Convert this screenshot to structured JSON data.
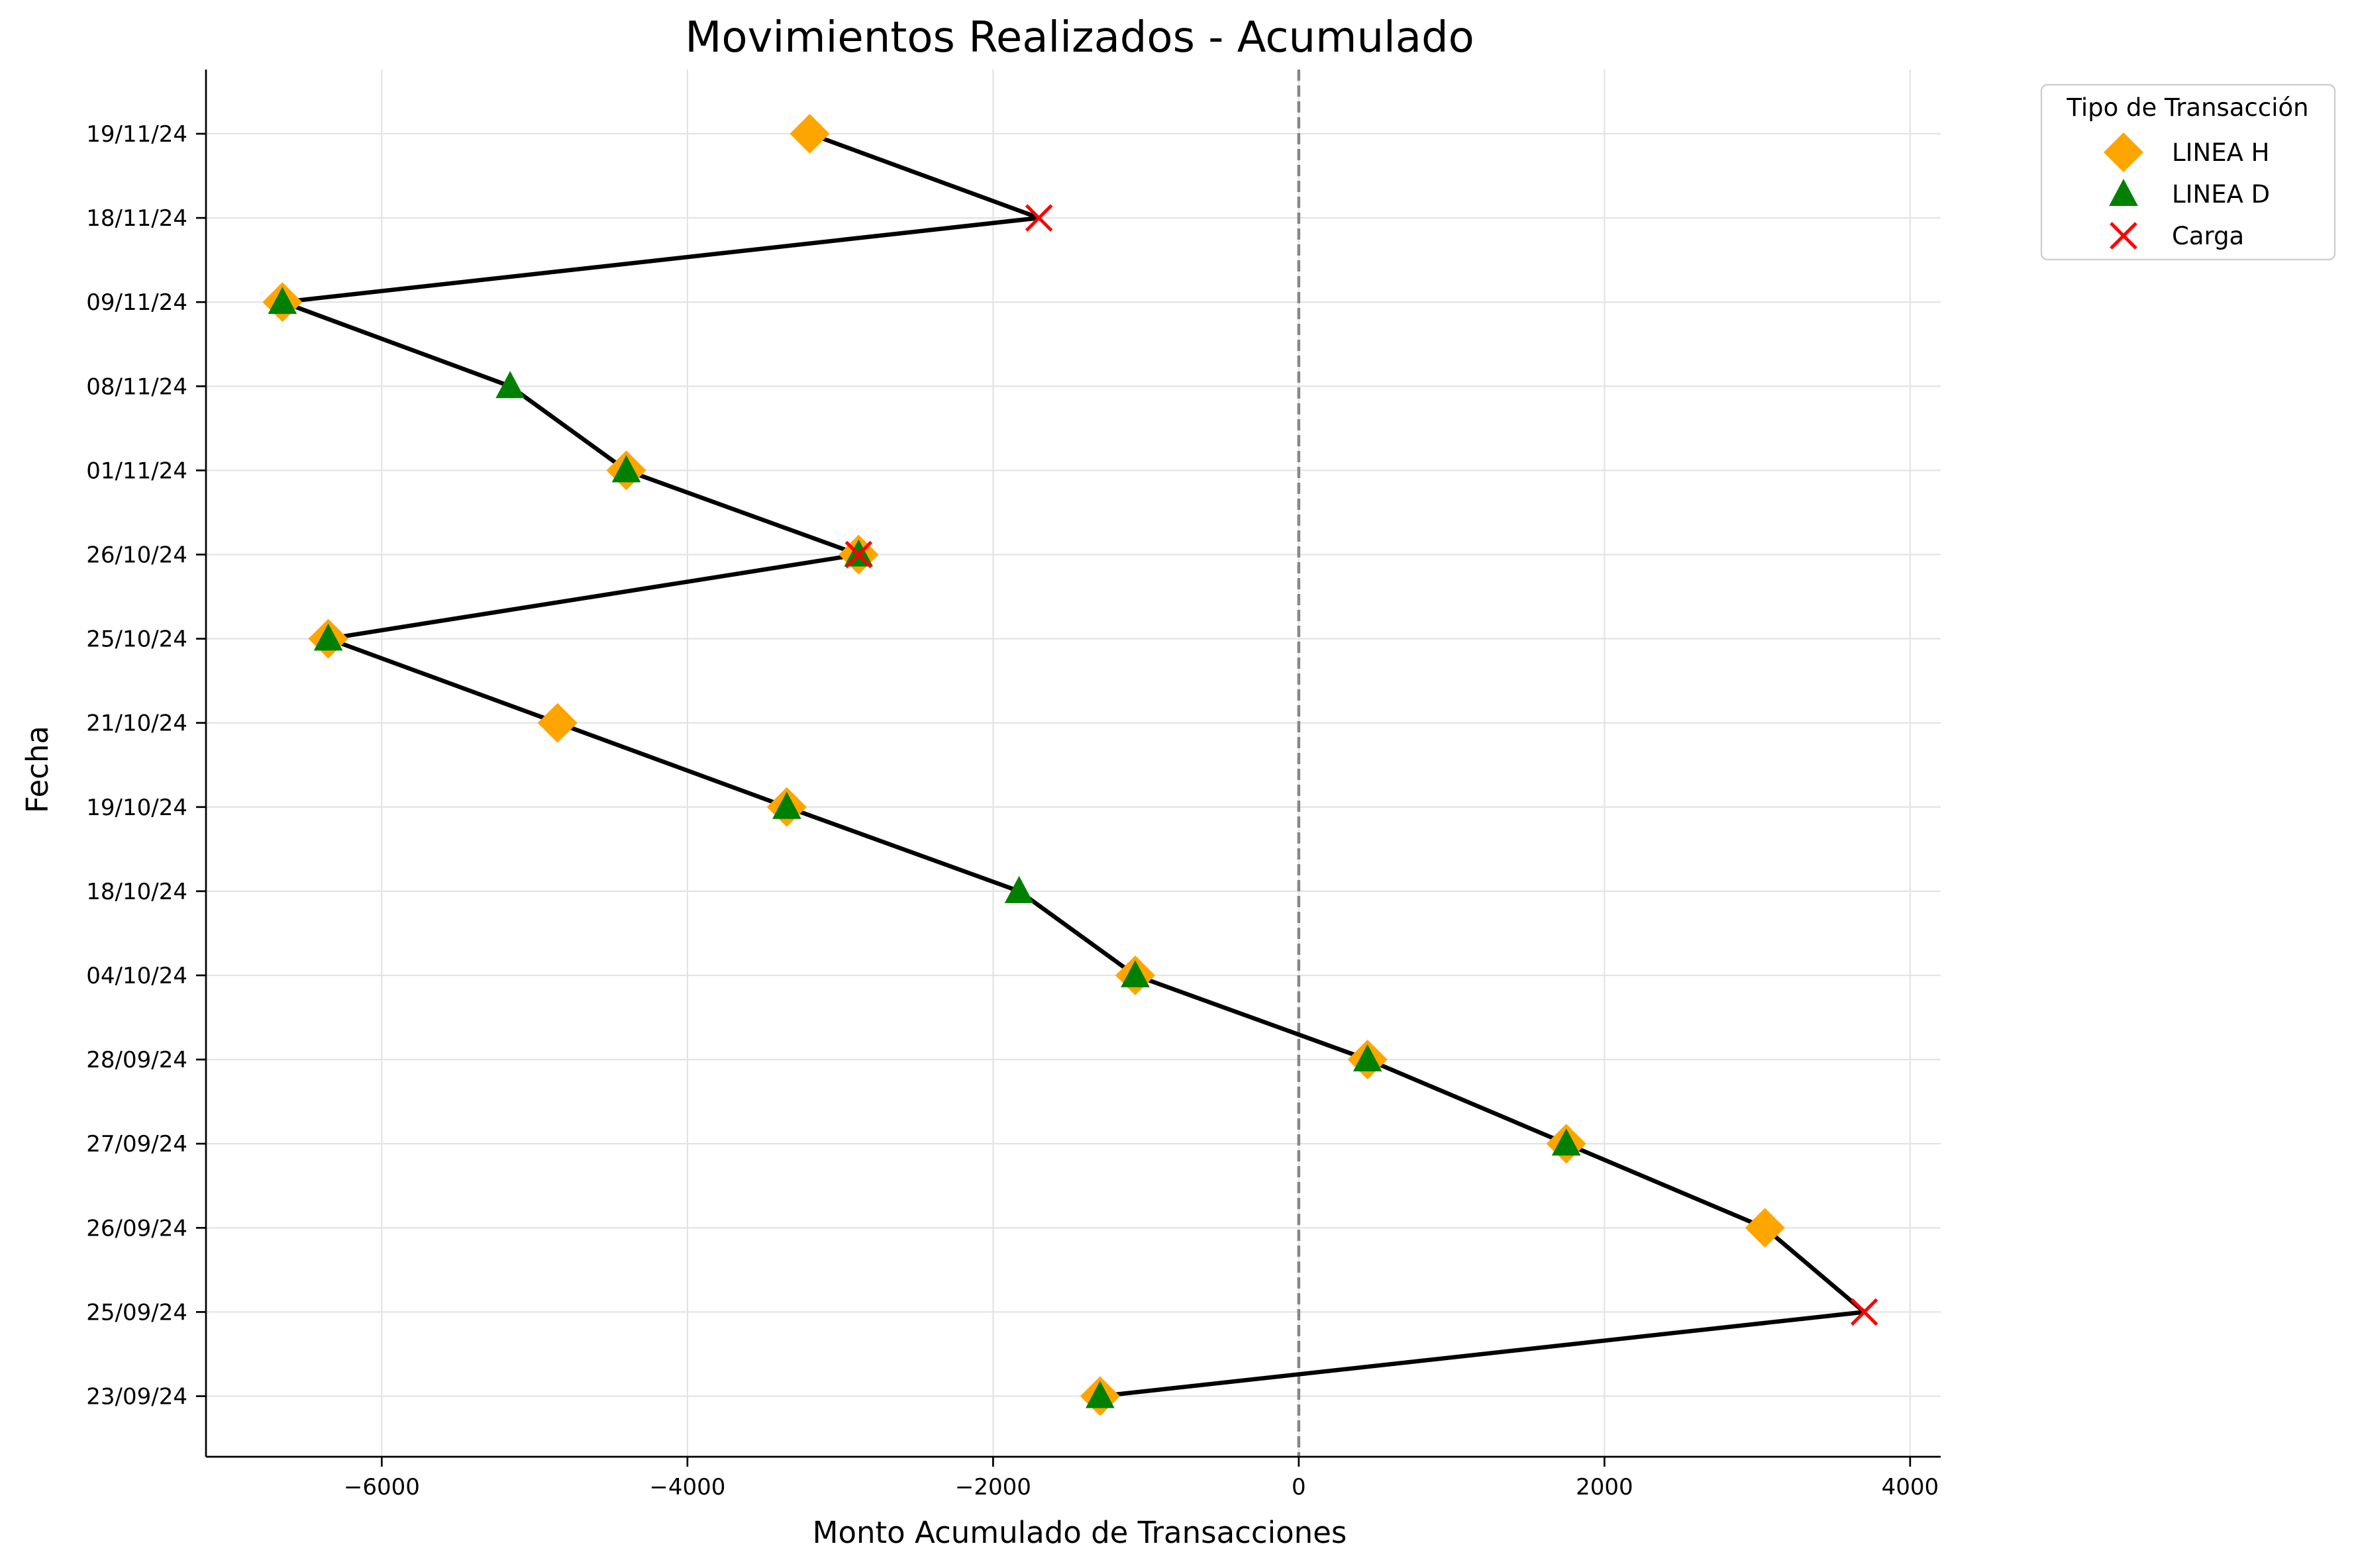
{
  "chart_data": {
    "type": "scatter",
    "title": "Movimientos Realizados - Acumulado",
    "xlabel": "Monto Acumulado de Transacciones",
    "ylabel": "Fecha",
    "xlim": [
      -7150,
      4200
    ],
    "x_ticks": [
      -6000,
      -4000,
      -2000,
      0,
      2000,
      4000
    ],
    "x_tick_labels": [
      "−6000",
      "−4000",
      "−2000",
      "0",
      "2000",
      "4000"
    ],
    "categories": [
      "23/09/24",
      "25/09/24",
      "26/09/24",
      "27/09/24",
      "28/09/24",
      "04/10/24",
      "18/10/24",
      "19/10/24",
      "21/10/24",
      "25/10/24",
      "26/10/24",
      "01/11/24",
      "08/11/24",
      "09/11/24",
      "18/11/24",
      "19/11/24"
    ],
    "grid": true,
    "reference_line": {
      "x": 0,
      "style": "dashed",
      "color": "#888888"
    },
    "cumulative_line": {
      "color": "#000000",
      "points": [
        {
          "date": "23/09/24",
          "x": -1300
        },
        {
          "date": "25/09/24",
          "x": 3700
        },
        {
          "date": "26/09/24",
          "x": 3050
        },
        {
          "date": "27/09/24",
          "x": 1750
        },
        {
          "date": "28/09/24",
          "x": 450
        },
        {
          "date": "04/10/24",
          "x": -1070
        },
        {
          "date": "18/10/24",
          "x": -1830
        },
        {
          "date": "19/10/24",
          "x": -3350
        },
        {
          "date": "21/10/24",
          "x": -4850
        },
        {
          "date": "25/10/24",
          "x": -6350
        },
        {
          "date": "26/10/24",
          "x": -2880
        },
        {
          "date": "01/11/24",
          "x": -4400
        },
        {
          "date": "08/11/24",
          "x": -5160
        },
        {
          "date": "09/11/24",
          "x": -6650
        },
        {
          "date": "18/11/24",
          "x": -1700
        },
        {
          "date": "19/11/24",
          "x": -3200
        }
      ]
    },
    "legend": {
      "title": "Tipo de Transacción",
      "placement": "outside-top-right",
      "entries": [
        {
          "name": "LINEA H",
          "marker": "diamond",
          "color": "#ffa500"
        },
        {
          "name": "LINEA D",
          "marker": "triangle",
          "color": "#008000"
        },
        {
          "name": "Carga",
          "marker": "x",
          "color": "#ff0000"
        }
      ]
    },
    "series": [
      {
        "name": "LINEA H",
        "marker": "diamond",
        "color": "#ffa500",
        "points": [
          {
            "date": "23/09/24",
            "x": -1300
          },
          {
            "date": "26/09/24",
            "x": 3050
          },
          {
            "date": "27/09/24",
            "x": 1750
          },
          {
            "date": "28/09/24",
            "x": 450
          },
          {
            "date": "04/10/24",
            "x": -1070
          },
          {
            "date": "19/10/24",
            "x": -3350
          },
          {
            "date": "21/10/24",
            "x": -4850
          },
          {
            "date": "25/10/24",
            "x": -6350
          },
          {
            "date": "26/10/24",
            "x": -2880
          },
          {
            "date": "01/11/24",
            "x": -4400
          },
          {
            "date": "09/11/24",
            "x": -6650
          },
          {
            "date": "19/11/24",
            "x": -3200
          }
        ]
      },
      {
        "name": "LINEA D",
        "marker": "triangle",
        "color": "#008000",
        "points": [
          {
            "date": "23/09/24",
            "x": -1300
          },
          {
            "date": "27/09/24",
            "x": 1750
          },
          {
            "date": "28/09/24",
            "x": 450
          },
          {
            "date": "04/10/24",
            "x": -1070
          },
          {
            "date": "18/10/24",
            "x": -1830
          },
          {
            "date": "19/10/24",
            "x": -3350
          },
          {
            "date": "25/10/24",
            "x": -6350
          },
          {
            "date": "26/10/24",
            "x": -2880
          },
          {
            "date": "01/11/24",
            "x": -4400
          },
          {
            "date": "08/11/24",
            "x": -5160
          },
          {
            "date": "09/11/24",
            "x": -6650
          }
        ]
      },
      {
        "name": "Carga",
        "marker": "x",
        "color": "#ff0000",
        "points": [
          {
            "date": "25/09/24",
            "x": 3700
          },
          {
            "date": "26/10/24",
            "x": -2880
          },
          {
            "date": "18/11/24",
            "x": -1700
          }
        ]
      }
    ]
  }
}
